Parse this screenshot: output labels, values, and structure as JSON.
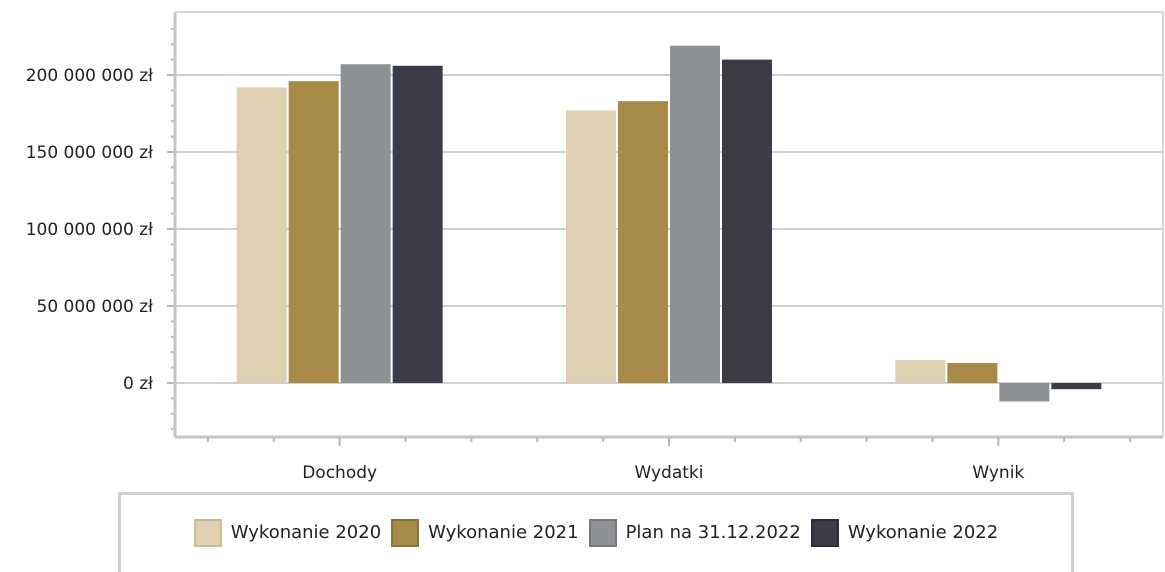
{
  "chart_data": {
    "type": "bar",
    "categories": [
      "Dochody",
      "Wydatki",
      "Wynik"
    ],
    "series": [
      {
        "name": "Wykonanie 2020",
        "color": "#ded0b0",
        "border": "#c9bb98",
        "values": [
          192000000,
          177000000,
          15000000
        ]
      },
      {
        "name": "Wykonanie 2021",
        "color": "#a78948",
        "border": "#8e7338",
        "values": [
          196000000,
          183000000,
          13000000
        ]
      },
      {
        "name": "Plan na 31.12.2022",
        "color": "#8e9194",
        "border": "#77797c",
        "values": [
          207000000,
          219000000,
          -12000000
        ]
      },
      {
        "name": "Wykonanie 2022",
        "color": "#3b3c48",
        "border": "#2c2d36",
        "values": [
          206000000,
          210000000,
          -4000000
        ]
      }
    ],
    "yticks": [
      0,
      50000000,
      100000000,
      150000000,
      200000000
    ],
    "ytick_labels": [
      "0 zł",
      "50 000 000 zł",
      "100 000 000 zł",
      "150 000 000 zł",
      "200 000 000 zł"
    ],
    "ylim": [
      -35000000,
      240000000
    ],
    "grid": true,
    "legend_position": "bottom"
  }
}
